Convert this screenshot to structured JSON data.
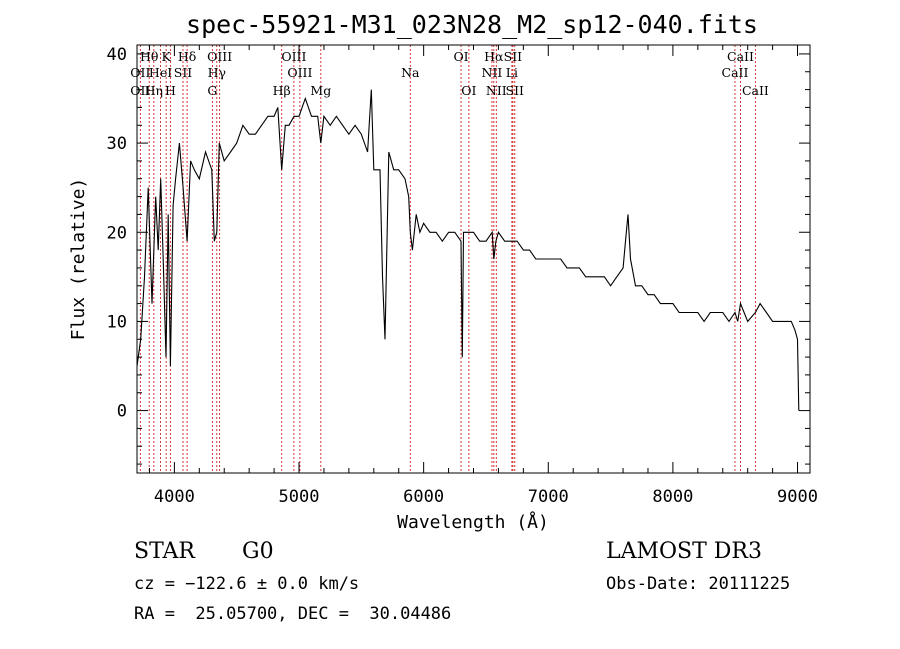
{
  "chart_data": {
    "type": "line",
    "title": "spec-55921-M31_023N28_M2_sp12-040.fits",
    "xlabel": "Wavelength (Å)",
    "ylabel": "Flux (relative)",
    "xlim": [
      3700,
      9100
    ],
    "ylim": [
      -7,
      41
    ],
    "x_ticks": [
      4000,
      5000,
      6000,
      7000,
      8000,
      9000
    ],
    "x_tick_labels": [
      "4000",
      "5000",
      "6000",
      "7000",
      "8000",
      "9000"
    ],
    "y_ticks": [
      0,
      10,
      20,
      30,
      40
    ],
    "y_tick_labels": [
      "0",
      "10",
      "20",
      "30",
      "40"
    ],
    "grid": false,
    "series": [
      {
        "name": "spectrum",
        "color": "#000000",
        "x": [
          3700,
          3730,
          3760,
          3790,
          3820,
          3850,
          3870,
          3890,
          3910,
          3933,
          3950,
          3968,
          3990,
          4010,
          4040,
          4070,
          4102,
          4130,
          4160,
          4200,
          4250,
          4300,
          4320,
          4340,
          4360,
          4400,
          4450,
          4500,
          4550,
          4600,
          4650,
          4700,
          4750,
          4800,
          4830,
          4861,
          4890,
          4920,
          4960,
          5000,
          5050,
          5100,
          5150,
          5175,
          5200,
          5250,
          5300,
          5350,
          5400,
          5450,
          5500,
          5550,
          5580,
          5600,
          5650,
          5670,
          5690,
          5720,
          5760,
          5800,
          5850,
          5880,
          5893,
          5910,
          5940,
          5970,
          6000,
          6050,
          6100,
          6150,
          6200,
          6250,
          6300,
          6310,
          6320,
          6360,
          6400,
          6450,
          6500,
          6550,
          6563,
          6580,
          6600,
          6650,
          6700,
          6750,
          6800,
          6850,
          6900,
          6950,
          7000,
          7050,
          7100,
          7150,
          7200,
          7250,
          7300,
          7350,
          7400,
          7450,
          7500,
          7550,
          7600,
          7620,
          7640,
          7660,
          7700,
          7750,
          7800,
          7850,
          7900,
          7950,
          8000,
          8050,
          8100,
          8150,
          8200,
          8250,
          8300,
          8350,
          8400,
          8450,
          8498,
          8520,
          8542,
          8600,
          8662,
          8700,
          8750,
          8800,
          8850,
          8900,
          8950,
          8980,
          9000,
          9010
        ],
        "y": [
          5,
          8,
          15,
          25,
          12,
          24,
          18,
          26,
          17,
          6,
          22,
          5,
          23,
          26,
          30,
          25,
          19,
          28,
          27,
          26,
          29,
          27,
          19,
          20,
          30,
          28,
          29,
          30,
          32,
          31,
          31,
          32,
          33,
          33,
          34,
          27,
          32,
          32,
          33,
          33,
          35,
          33,
          33,
          30,
          33,
          32,
          33,
          32,
          31,
          32,
          31,
          29,
          36,
          27,
          27,
          15,
          8,
          29,
          27,
          27,
          26,
          24,
          20,
          18,
          22,
          20,
          21,
          20,
          20,
          19,
          20,
          20,
          19,
          6,
          20,
          20,
          20,
          19,
          19,
          20,
          17,
          19,
          20,
          19,
          19,
          19,
          18,
          18,
          17,
          17,
          17,
          17,
          17,
          16,
          16,
          16,
          15,
          15,
          15,
          15,
          14,
          15,
          16,
          19,
          22,
          17,
          14,
          14,
          13,
          13,
          12,
          12,
          12,
          11,
          11,
          11,
          11,
          10,
          11,
          11,
          11,
          10,
          11,
          10,
          12,
          10,
          11,
          12,
          11,
          10,
          10,
          10,
          10,
          9,
          8,
          0
        ]
      }
    ],
    "annotations": {
      "line_markers": [
        {
          "label": "Hθ",
          "wavelength": 3798,
          "row": 1
        },
        {
          "label": "OII",
          "wavelength": 3727,
          "row": 2
        },
        {
          "label": "OII",
          "wavelength": 3727,
          "row": 3
        },
        {
          "label": "Hη",
          "wavelength": 3835,
          "row": 3
        },
        {
          "label": "HeI",
          "wavelength": 3889,
          "row": 2
        },
        {
          "label": "K",
          "wavelength": 3934,
          "row": 1
        },
        {
          "label": "H",
          "wavelength": 3968,
          "row": 3
        },
        {
          "label": "SII",
          "wavelength": 4069,
          "row": 2
        },
        {
          "label": "Hδ",
          "wavelength": 4102,
          "row": 1
        },
        {
          "label": "OIII",
          "wavelength": 4363,
          "row": 1
        },
        {
          "label": "Hγ",
          "wavelength": 4340,
          "row": 2
        },
        {
          "label": "G",
          "wavelength": 4305,
          "row": 3
        },
        {
          "label": "Hβ",
          "wavelength": 4861,
          "row": 3
        },
        {
          "label": "OIII",
          "wavelength": 4959,
          "row": 1
        },
        {
          "label": "OIII",
          "wavelength": 5007,
          "row": 2
        },
        {
          "label": "Mg",
          "wavelength": 5175,
          "row": 3
        },
        {
          "label": "Na",
          "wavelength": 5893,
          "row": 2
        },
        {
          "label": "OI",
          "wavelength": 6300,
          "row": 1
        },
        {
          "label": "OI",
          "wavelength": 6363,
          "row": 3
        },
        {
          "label": "Hα",
          "wavelength": 6563,
          "row": 1
        },
        {
          "label": "NII",
          "wavelength": 6548,
          "row": 2
        },
        {
          "label": "NII",
          "wavelength": 6583,
          "row": 3
        },
        {
          "label": "SII",
          "wavelength": 6716,
          "row": 1
        },
        {
          "label": "Li",
          "wavelength": 6708,
          "row": 2
        },
        {
          "label": "SII",
          "wavelength": 6731,
          "row": 3
        },
        {
          "label": "CaII",
          "wavelength": 8542,
          "row": 1
        },
        {
          "label": "CaII",
          "wavelength": 8498,
          "row": 2
        },
        {
          "label": "CaII",
          "wavelength": 8662,
          "row": 3
        }
      ],
      "marker_wavelengths": [
        3727,
        3798,
        3835,
        3889,
        3934,
        3968,
        4069,
        4102,
        4305,
        4340,
        4363,
        4861,
        4959,
        5007,
        5175,
        5893,
        6300,
        6363,
        6548,
        6563,
        6583,
        6708,
        6716,
        6731,
        8498,
        8542,
        8662
      ]
    }
  },
  "footer": {
    "object_class": "STAR",
    "subclass": "G0",
    "survey": "LAMOST DR3",
    "redshift": "cz = −122.6 ± 0.0 km/s",
    "obs_date": "Obs-Date: 20111225",
    "coords": "RA =  25.05700, DEC =  30.04486"
  },
  "colors": {
    "line_marker": "#cc2222",
    "spectrum": "#000000",
    "axes": "#000000",
    "background": "#ffffff"
  }
}
